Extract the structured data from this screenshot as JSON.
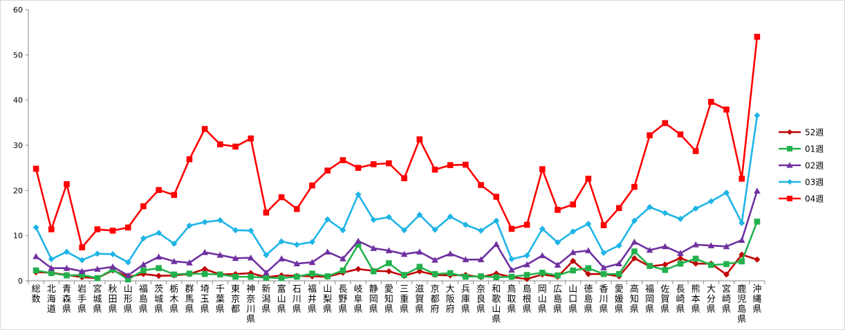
{
  "chart_data": {
    "type": "line",
    "title": "",
    "xlabel": "",
    "ylabel": "",
    "ylim": [
      0,
      60
    ],
    "yticks": [
      0,
      10,
      20,
      30,
      40,
      50,
      60
    ],
    "grid": false,
    "legend_position": "right",
    "categories": [
      "総数",
      "北海道",
      "青森県",
      "岩手県",
      "宮城県",
      "秋田県",
      "山形県",
      "福島県",
      "茨城県",
      "栃木県",
      "群馬県",
      "埼玉県",
      "千葉県",
      "東京都",
      "神奈川県",
      "新潟県",
      "富山県",
      "石川県",
      "福井県",
      "山梨県",
      "長野県",
      "岐阜県",
      "静岡県",
      "愛知県",
      "三重県",
      "滋賀県",
      "京都府",
      "大阪府",
      "兵庫県",
      "奈良県",
      "和歌山県",
      "鳥取県",
      "島根県",
      "岡山県",
      "広島県",
      "山口県",
      "徳島県",
      "香川県",
      "愛媛県",
      "高知県",
      "福岡県",
      "佐賀県",
      "長崎県",
      "熊本県",
      "大分県",
      "宮崎県",
      "鹿児島県",
      "沖縄県"
    ],
    "series": [
      {
        "name": "52週",
        "color": "#c00000",
        "marker": "diamond",
        "values": [
          1.9,
          1.8,
          1.3,
          0.8,
          0.6,
          2.3,
          0.9,
          1.5,
          1.1,
          1.2,
          1.5,
          2.6,
          1.4,
          1.5,
          1.7,
          0.8,
          1.2,
          1.1,
          1.0,
          0.9,
          1.8,
          2.6,
          2.2,
          2.1,
          1.1,
          2.1,
          1.3,
          1.2,
          1.3,
          0.8,
          1.6,
          0.8,
          0.4,
          1.4,
          0.9,
          4.4,
          1.5,
          1.5,
          1.0,
          5.0,
          3.2,
          3.6,
          5.0,
          3.8,
          3.8,
          1.4,
          5.8,
          4.7
        ]
      },
      {
        "name": "01週",
        "color": "#22b14c",
        "marker": "square",
        "values": [
          2.3,
          1.7,
          1.2,
          1.3,
          0.6,
          2.5,
          0.3,
          2.3,
          2.8,
          1.4,
          1.6,
          1.5,
          1.4,
          0.9,
          0.9,
          0.7,
          0.6,
          0.9,
          1.6,
          1.0,
          2.3,
          8.0,
          2.1,
          3.9,
          1.3,
          3.1,
          1.5,
          1.7,
          0.9,
          1.0,
          0.8,
          0.9,
          1.3,
          1.8,
          1.2,
          2.3,
          2.8,
          1.5,
          1.5,
          6.5,
          3.3,
          2.4,
          3.8,
          4.9,
          3.5,
          3.7,
          4.3,
          13.1
        ]
      },
      {
        "name": "02週",
        "color": "#7030a0",
        "marker": "triangle",
        "values": [
          5.4,
          2.8,
          2.8,
          2.1,
          2.6,
          3.1,
          1.2,
          3.6,
          5.3,
          4.3,
          4.0,
          6.3,
          5.7,
          5.0,
          5.1,
          1.8,
          4.9,
          3.8,
          4.1,
          6.4,
          4.9,
          8.8,
          7.2,
          6.7,
          5.9,
          6.4,
          4.6,
          6.0,
          4.7,
          4.7,
          8.1,
          2.4,
          3.6,
          5.6,
          3.5,
          6.3,
          6.7,
          2.9,
          3.8,
          8.6,
          6.8,
          7.6,
          6.1,
          8.0,
          7.8,
          7.6,
          9.0,
          19.9
        ]
      },
      {
        "name": "03週",
        "color": "#1eb4e6",
        "marker": "diamond",
        "values": [
          11.8,
          4.8,
          6.4,
          4.6,
          6.0,
          5.9,
          4.1,
          9.4,
          10.6,
          8.2,
          12.2,
          13.0,
          13.4,
          11.2,
          11.1,
          5.7,
          8.7,
          8.0,
          8.6,
          13.6,
          11.2,
          19.1,
          13.5,
          14.1,
          11.2,
          14.6,
          11.3,
          14.2,
          12.4,
          11.1,
          13.3,
          4.8,
          5.6,
          11.5,
          8.5,
          10.9,
          12.6,
          6.2,
          7.8,
          13.3,
          16.3,
          15.0,
          13.7,
          16.0,
          17.6,
          19.5,
          12.8,
          36.6
        ]
      },
      {
        "name": "04週",
        "color": "#ff0000",
        "marker": "square",
        "values": [
          24.8,
          11.4,
          21.4,
          7.4,
          11.4,
          11.1,
          11.8,
          16.5,
          20.1,
          19.0,
          26.9,
          33.6,
          30.2,
          29.7,
          31.5,
          15.1,
          18.5,
          15.9,
          21.1,
          24.4,
          26.7,
          25.0,
          25.8,
          26.0,
          22.7,
          31.3,
          24.6,
          25.6,
          25.7,
          21.2,
          18.6,
          11.5,
          12.4,
          24.7,
          15.7,
          16.9,
          22.6,
          12.3,
          16.1,
          20.8,
          32.2,
          34.9,
          32.4,
          28.7,
          39.6,
          37.9,
          22.6,
          54.0
        ]
      }
    ]
  }
}
